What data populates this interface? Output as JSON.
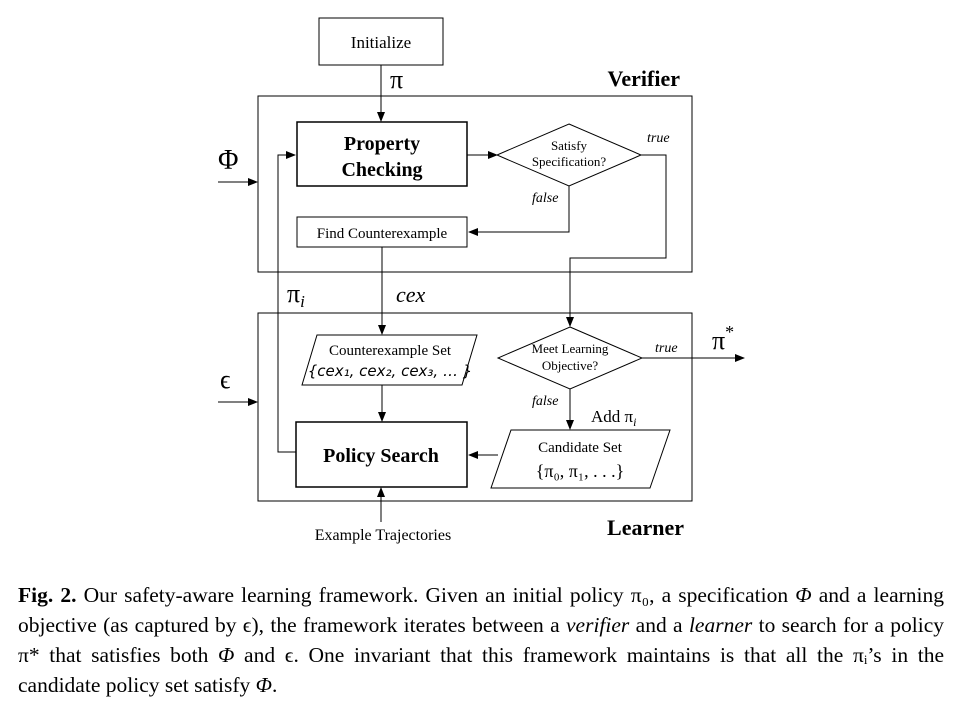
{
  "nodes": {
    "initialize": "Initialize",
    "property_checking_line1": "Property",
    "property_checking_line2": "Checking",
    "satisfy_line1": "Satisfy",
    "satisfy_line2": "Specification?",
    "find_counterexample": "Find Counterexample",
    "counterexample_set_title": "Counterexample Set",
    "counterexample_set_value": "{cex₁, cex₂, cex₃, … }",
    "meet_line1": "Meet Learning",
    "meet_line2": "Objective?",
    "policy_search": "Policy Search",
    "candidate_set_title": "Candidate Set",
    "candidate_set_value": "{π₀, π₁, . . .}",
    "example_trajectories": "Example Trajectories"
  },
  "regions": {
    "verifier": "Verifier",
    "learner": "Learner"
  },
  "edge_labels": {
    "pi": "π",
    "phi": "Φ",
    "epsilon": "ϵ",
    "true_satisfy": "true",
    "false_satisfy": "false",
    "pi_i": "π",
    "pi_i_sub": "i",
    "cex": "cex",
    "true_meet": "true",
    "pi_star": "π",
    "pi_star_sup": "*",
    "false_meet": "false",
    "add_pi_i": "Add π",
    "add_pi_i_sub": "i"
  },
  "caption": {
    "label": "Fig. 2.",
    "text_a": " Our safety-aware learning framework. Given an initial policy π₀, a specification ",
    "phi1": "Φ",
    "text_b": " and a learning objective (as captured by ϵ), the framework iterates between a ",
    "verifier": "verifier",
    "text_c": " and a ",
    "learner": "learner",
    "text_d": " to search for a policy π* that satisfies both ",
    "phi2": "Φ",
    "text_e": " and ϵ. One invariant that this framework maintains is that all the πᵢ’s in the candidate policy set satisfy ",
    "phi3": "Φ",
    "text_f": "."
  }
}
